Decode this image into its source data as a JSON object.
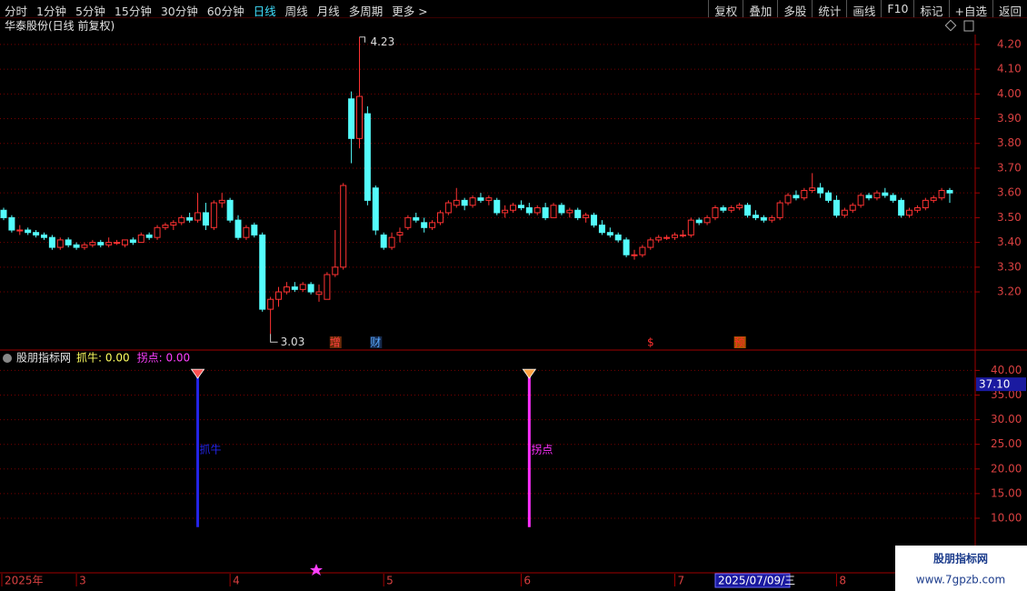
{
  "toolbar": {
    "periods": [
      "分时",
      "1分钟",
      "5分钟",
      "15分钟",
      "30分钟",
      "60分钟",
      "日线",
      "周线",
      "月线",
      "多周期",
      "更多 >"
    ],
    "active": 6,
    "tools": [
      "复权",
      "叠加",
      "多股",
      "统计",
      "画线",
      "F10",
      "标记",
      "+自选",
      "返回"
    ]
  },
  "chart_data": [
    {
      "type": "candlestick",
      "title": "华泰股份(日线 前复权)",
      "up_color": "#ff3232",
      "down_color": "#54fcfc",
      "annotate_extremes": true,
      "candles": [
        [
          3.53,
          3.54,
          3.49,
          3.5
        ],
        [
          3.5,
          3.51,
          3.44,
          3.45
        ],
        [
          3.45,
          3.47,
          3.43,
          3.45
        ],
        [
          3.45,
          3.46,
          3.43,
          3.44
        ],
        [
          3.44,
          3.45,
          3.42,
          3.43
        ],
        [
          3.43,
          3.44,
          3.41,
          3.42
        ],
        [
          3.42,
          3.43,
          3.37,
          3.38
        ],
        [
          3.38,
          3.42,
          3.37,
          3.41
        ],
        [
          3.41,
          3.42,
          3.38,
          3.39
        ],
        [
          3.39,
          3.4,
          3.37,
          3.38
        ],
        [
          3.38,
          3.4,
          3.37,
          3.39
        ],
        [
          3.39,
          3.41,
          3.38,
          3.4
        ],
        [
          3.4,
          3.41,
          3.38,
          3.39
        ],
        [
          3.39,
          3.42,
          3.38,
          3.4
        ],
        [
          3.4,
          3.41,
          3.39,
          3.4
        ],
        [
          3.39,
          3.41,
          3.38,
          3.41
        ],
        [
          3.41,
          3.42,
          3.39,
          3.4
        ],
        [
          3.4,
          3.44,
          3.4,
          3.43
        ],
        [
          3.43,
          3.44,
          3.41,
          3.42
        ],
        [
          3.42,
          3.47,
          3.41,
          3.46
        ],
        [
          3.46,
          3.48,
          3.45,
          3.47
        ],
        [
          3.47,
          3.49,
          3.45,
          3.48
        ],
        [
          3.48,
          3.51,
          3.47,
          3.5
        ],
        [
          3.5,
          3.52,
          3.48,
          3.49
        ],
        [
          3.49,
          3.6,
          3.48,
          3.52
        ],
        [
          3.52,
          3.56,
          3.45,
          3.47
        ],
        [
          3.46,
          3.57,
          3.45,
          3.56
        ],
        [
          3.56,
          3.6,
          3.54,
          3.57
        ],
        [
          3.57,
          3.58,
          3.48,
          3.49
        ],
        [
          3.49,
          3.51,
          3.41,
          3.42
        ],
        [
          3.42,
          3.47,
          3.41,
          3.46
        ],
        [
          3.47,
          3.48,
          3.42,
          3.43
        ],
        [
          3.43,
          3.44,
          3.12,
          3.13
        ],
        [
          3.13,
          3.18,
          3.03,
          3.17
        ],
        [
          3.17,
          3.22,
          3.14,
          3.2
        ],
        [
          3.2,
          3.24,
          3.19,
          3.22
        ],
        [
          3.22,
          3.24,
          3.2,
          3.21
        ],
        [
          3.21,
          3.24,
          3.2,
          3.23
        ],
        [
          3.23,
          3.24,
          3.19,
          3.2
        ],
        [
          3.19,
          3.23,
          3.16,
          3.2
        ],
        [
          3.17,
          3.28,
          3.17,
          3.27
        ],
        [
          3.27,
          3.45,
          3.26,
          3.3
        ],
        [
          3.3,
          3.64,
          3.29,
          3.63
        ],
        [
          3.98,
          4.01,
          3.72,
          3.82
        ],
        [
          3.82,
          4.23,
          3.78,
          3.99
        ],
        [
          3.92,
          3.95,
          3.55,
          3.57
        ],
        [
          3.62,
          3.63,
          3.43,
          3.45
        ],
        [
          3.43,
          3.44,
          3.37,
          3.38
        ],
        [
          3.38,
          3.44,
          3.37,
          3.42
        ],
        [
          3.43,
          3.46,
          3.4,
          3.44
        ],
        [
          3.46,
          3.51,
          3.45,
          3.5
        ],
        [
          3.5,
          3.52,
          3.48,
          3.49
        ],
        [
          3.48,
          3.5,
          3.44,
          3.46
        ],
        [
          3.46,
          3.49,
          3.45,
          3.48
        ],
        [
          3.48,
          3.53,
          3.47,
          3.52
        ],
        [
          3.52,
          3.57,
          3.51,
          3.56
        ],
        [
          3.55,
          3.62,
          3.54,
          3.57
        ],
        [
          3.57,
          3.58,
          3.53,
          3.55
        ],
        [
          3.55,
          3.59,
          3.54,
          3.58
        ],
        [
          3.58,
          3.6,
          3.56,
          3.57
        ],
        [
          3.57,
          3.59,
          3.55,
          3.58
        ],
        [
          3.57,
          3.58,
          3.51,
          3.52
        ],
        [
          3.52,
          3.55,
          3.5,
          3.53
        ],
        [
          3.53,
          3.56,
          3.52,
          3.55
        ],
        [
          3.55,
          3.57,
          3.53,
          3.54
        ],
        [
          3.54,
          3.56,
          3.51,
          3.52
        ],
        [
          3.52,
          3.55,
          3.51,
          3.54
        ],
        [
          3.54,
          3.56,
          3.49,
          3.5
        ],
        [
          3.5,
          3.56,
          3.5,
          3.55
        ],
        [
          3.55,
          3.56,
          3.51,
          3.52
        ],
        [
          3.52,
          3.54,
          3.5,
          3.53
        ],
        [
          3.53,
          3.54,
          3.49,
          3.5
        ],
        [
          3.5,
          3.52,
          3.48,
          3.51
        ],
        [
          3.51,
          3.52,
          3.46,
          3.47
        ],
        [
          3.47,
          3.49,
          3.43,
          3.44
        ],
        [
          3.44,
          3.46,
          3.42,
          3.43
        ],
        [
          3.43,
          3.44,
          3.4,
          3.41
        ],
        [
          3.41,
          3.42,
          3.34,
          3.35
        ],
        [
          3.35,
          3.37,
          3.33,
          3.35
        ],
        [
          3.35,
          3.39,
          3.34,
          3.38
        ],
        [
          3.38,
          3.42,
          3.37,
          3.41
        ],
        [
          3.41,
          3.43,
          3.4,
          3.42
        ],
        [
          3.42,
          3.43,
          3.41,
          3.42
        ],
        [
          3.42,
          3.44,
          3.41,
          3.43
        ],
        [
          3.43,
          3.45,
          3.42,
          3.43
        ],
        [
          3.43,
          3.5,
          3.42,
          3.49
        ],
        [
          3.49,
          3.5,
          3.47,
          3.48
        ],
        [
          3.48,
          3.51,
          3.47,
          3.5
        ],
        [
          3.5,
          3.55,
          3.49,
          3.54
        ],
        [
          3.54,
          3.55,
          3.52,
          3.53
        ],
        [
          3.53,
          3.55,
          3.52,
          3.54
        ],
        [
          3.54,
          3.56,
          3.53,
          3.55
        ],
        [
          3.55,
          3.56,
          3.5,
          3.51
        ],
        [
          3.51,
          3.53,
          3.49,
          3.5
        ],
        [
          3.5,
          3.51,
          3.48,
          3.49
        ],
        [
          3.49,
          3.51,
          3.48,
          3.5
        ],
        [
          3.5,
          3.57,
          3.49,
          3.56
        ],
        [
          3.56,
          3.6,
          3.55,
          3.59
        ],
        [
          3.59,
          3.61,
          3.57,
          3.58
        ],
        [
          3.58,
          3.62,
          3.57,
          3.61
        ],
        [
          3.61,
          3.68,
          3.6,
          3.62
        ],
        [
          3.62,
          3.64,
          3.58,
          3.6
        ],
        [
          3.6,
          3.61,
          3.56,
          3.57
        ],
        [
          3.57,
          3.59,
          3.5,
          3.51
        ],
        [
          3.51,
          3.54,
          3.5,
          3.53
        ],
        [
          3.53,
          3.56,
          3.52,
          3.55
        ],
        [
          3.55,
          3.6,
          3.54,
          3.59
        ],
        [
          3.59,
          3.6,
          3.57,
          3.58
        ],
        [
          3.58,
          3.61,
          3.57,
          3.6
        ],
        [
          3.6,
          3.62,
          3.58,
          3.59
        ],
        [
          3.59,
          3.6,
          3.56,
          3.57
        ],
        [
          3.57,
          3.58,
          3.5,
          3.51
        ],
        [
          3.51,
          3.54,
          3.5,
          3.53
        ],
        [
          3.53,
          3.55,
          3.52,
          3.54
        ],
        [
          3.54,
          3.58,
          3.53,
          3.57
        ],
        [
          3.57,
          3.59,
          3.56,
          3.58
        ],
        [
          3.58,
          3.62,
          3.57,
          3.61
        ],
        [
          3.61,
          3.62,
          3.56,
          3.6
        ]
      ],
      "categories": [
        "2025年",
        null,
        null,
        null,
        null,
        null,
        null,
        null,
        null,
        "3",
        null,
        null,
        null,
        null,
        null,
        null,
        null,
        null,
        null,
        null,
        null,
        null,
        null,
        null,
        null,
        null,
        null,
        null,
        "4",
        null,
        null,
        null,
        null,
        null,
        null,
        null,
        null,
        null,
        null,
        null,
        null,
        null,
        null,
        null,
        null,
        null,
        null,
        "5",
        null,
        null,
        null,
        null,
        null,
        null,
        null,
        null,
        null,
        null,
        null,
        null,
        null,
        null,
        null,
        null,
        "6",
        null,
        null,
        null,
        null,
        null,
        null,
        null,
        null,
        null,
        null,
        null,
        null,
        null,
        null,
        null,
        null,
        null,
        null,
        "7",
        null,
        null,
        null,
        null,
        null,
        null,
        null,
        null,
        null,
        null,
        null,
        null,
        null,
        null,
        null,
        null,
        null,
        null,
        null,
        "8",
        null,
        null,
        null,
        null,
        null,
        null,
        null,
        null,
        null,
        null,
        null,
        null,
        null,
        null
      ],
      "cursor": {
        "index": 88,
        "label": "2025/07/09/三"
      },
      "ylim": [
        2.965,
        4.24
      ],
      "yticks": [
        {
          "value": 3.2,
          "label": "3.20"
        },
        {
          "value": 3.3,
          "label": "3.30"
        },
        {
          "value": 3.4,
          "label": "3.40"
        },
        {
          "value": 3.5,
          "label": "3.50"
        },
        {
          "value": 3.6,
          "label": "3.60"
        },
        {
          "value": 3.7,
          "label": "3.70"
        },
        {
          "value": 3.8,
          "label": "3.80"
        },
        {
          "value": 3.9,
          "label": "3.90"
        },
        {
          "value": 4.0,
          "label": "4.00"
        },
        {
          "value": 4.1,
          "label": "4.10"
        },
        {
          "value": 4.2,
          "label": "4.20"
        }
      ],
      "grid": true,
      "events": [
        {
          "label": "增",
          "index": 41,
          "color": "#ff4040",
          "background": "#6a2a08"
        },
        {
          "label": "财",
          "index": 46,
          "color": "#58a8ff",
          "background": "#14284a"
        },
        {
          "label": "$",
          "index": 80,
          "color": "#ff3030",
          "background": "#000000"
        },
        {
          "label": "预",
          "index": 91,
          "color": "#ff2a2a",
          "background": "#a85400"
        }
      ]
    },
    {
      "type": "signal",
      "title": "股朋指标网",
      "legend": [
        {
          "text": "抓牛: 0.00",
          "color": "#ffff60"
        },
        {
          "text": "拐点: 0.00",
          "color": "#ff40ff"
        }
      ],
      "signals": [
        {
          "name": "抓牛",
          "index": 24,
          "from": 8.2,
          "to": 39.5,
          "color": "#2424e8",
          "icon_color": "#ff5050"
        },
        {
          "name": "拐点",
          "index": 65,
          "from": 8.2,
          "to": 39.5,
          "color": "#ff30ff",
          "icon_color": "#ffa040"
        }
      ],
      "ylim": [
        4.46,
        41.55
      ],
      "yticks": [
        {
          "value": 10,
          "label": "10.00"
        },
        {
          "value": 15,
          "label": "15.00"
        },
        {
          "value": 20,
          "label": "20.00"
        },
        {
          "value": 25,
          "label": "25.00"
        },
        {
          "value": 30,
          "label": "30.00"
        },
        {
          "value": 35,
          "label": "35.00"
        },
        {
          "value": 40,
          "label": "40.00"
        }
      ],
      "grid": true,
      "cursor_value": {
        "value": 37.1,
        "label": "37.10"
      }
    }
  ],
  "watermark": {
    "title": "股朋指标网",
    "url": "www.7gpzb.com"
  }
}
